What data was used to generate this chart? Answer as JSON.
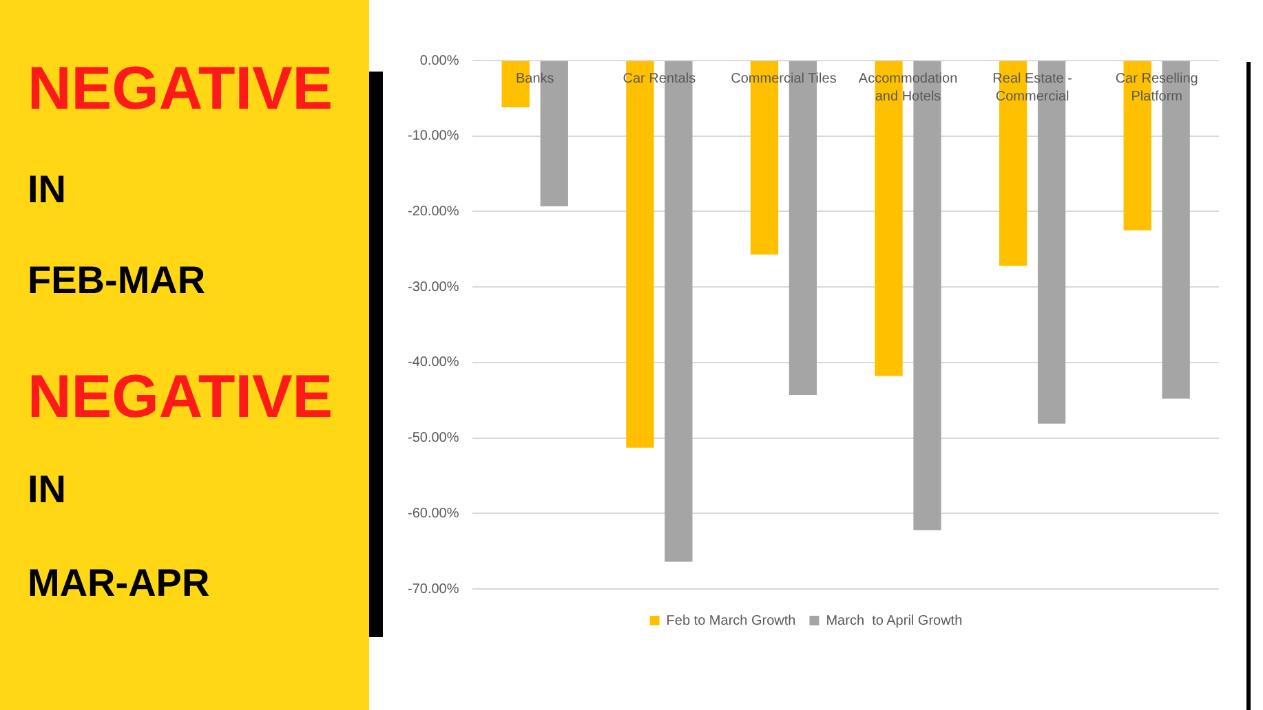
{
  "chart_data": {
    "type": "bar",
    "categories": [
      "Banks",
      "Car Rentals",
      "Commercial Tiles",
      "Accommodation and Hotels",
      "Real Estate - Commercial",
      "Car Reselling Platform"
    ],
    "series": [
      {
        "name": "Feb to March Growth",
        "color": "#ffc000",
        "values": [
          -6.2,
          -51.3,
          -25.7,
          -41.8,
          -27.2,
          -22.5
        ]
      },
      {
        "name": "March  to April Growth",
        "color": "#a5a5a5",
        "values": [
          -19.3,
          -66.4,
          -44.3,
          -62.2,
          -48.1,
          -44.8
        ]
      }
    ],
    "ylim": [
      -70,
      0
    ],
    "yticks": [
      {
        "value": 0,
        "label": "0.00%"
      },
      {
        "value": -10,
        "label": "-10.00%"
      },
      {
        "value": -20,
        "label": "-20.00%"
      },
      {
        "value": -30,
        "label": "-30.00%"
      },
      {
        "value": -40,
        "label": "-40.00%"
      },
      {
        "value": -50,
        "label": "-50.00%"
      },
      {
        "value": -60,
        "label": "-60.00%"
      },
      {
        "value": -70,
        "label": "-70.00%"
      }
    ],
    "grid": "y",
    "legend": "bottom",
    "annotations": [
      "NEGATIVE",
      "IN",
      "FEB-MAR",
      "NEGATIVE",
      "IN",
      "MAR-APR"
    ]
  }
}
